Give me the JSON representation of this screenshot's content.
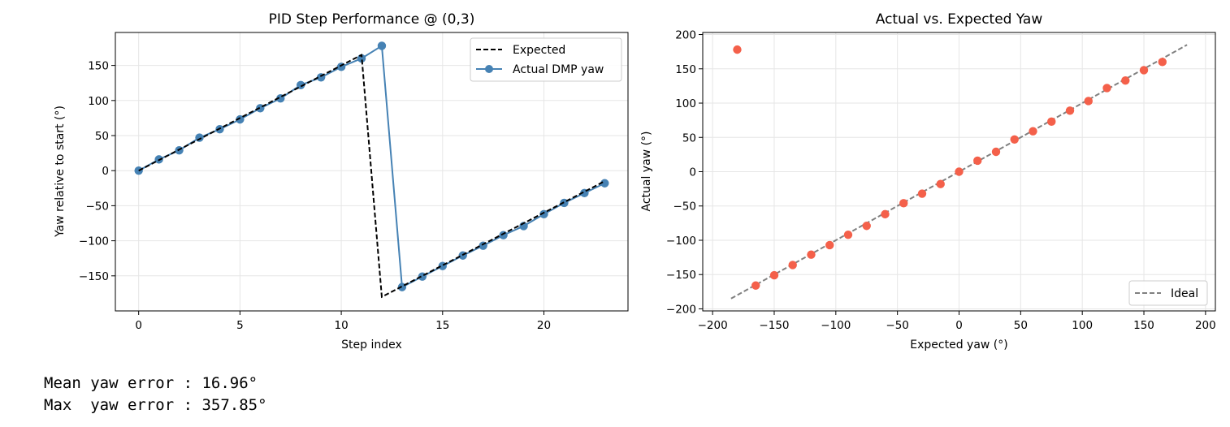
{
  "chart_data": [
    {
      "type": "line",
      "title": "PID Step Performance @ (0,3)",
      "xlabel": "Step index",
      "ylabel": "Yaw relative to start (°)",
      "xlim": [
        -1.15,
        24.15
      ],
      "ylim": [
        -200,
        197
      ],
      "xticks": [
        0,
        5,
        10,
        15,
        20
      ],
      "xtick_labels": [
        "0",
        "5",
        "10",
        "15",
        "20"
      ],
      "yticks": [
        -150,
        -100,
        -50,
        0,
        50,
        100,
        150
      ],
      "ytick_labels": [
        "−150",
        "−100",
        "−50",
        "0",
        "50",
        "100",
        "150"
      ],
      "grid": true,
      "legend_position": "top-right",
      "series": [
        {
          "name": "Expected",
          "style": "dashed",
          "color": "#000000",
          "x": [
            0,
            1,
            2,
            3,
            4,
            5,
            6,
            7,
            8,
            9,
            10,
            11,
            12,
            13,
            14,
            15,
            16,
            17,
            18,
            19,
            20,
            21,
            22,
            23
          ],
          "y": [
            0,
            15,
            30,
            45,
            60,
            75,
            90,
            105,
            120,
            135,
            150,
            165,
            -180,
            -165,
            -150,
            -135,
            -120,
            -105,
            -90,
            -75,
            -60,
            -45,
            -30,
            -15
          ]
        },
        {
          "name": "Actual DMP yaw",
          "style": "solid-marker",
          "color": "#4682b4",
          "x": [
            0,
            1,
            2,
            3,
            4,
            5,
            6,
            7,
            8,
            9,
            10,
            11,
            12,
            13,
            14,
            15,
            16,
            17,
            18,
            19,
            20,
            21,
            22,
            23
          ],
          "y": [
            0,
            16,
            29,
            47,
            59,
            73,
            89,
            103,
            122,
            133,
            148,
            160,
            178,
            -166,
            -151,
            -136,
            -121,
            -107,
            -92,
            -79,
            -62,
            -46,
            -32,
            -18
          ]
        }
      ]
    },
    {
      "type": "scatter",
      "title": "Actual vs. Expected Yaw",
      "xlabel": "Expected yaw (°)",
      "ylabel": "Actual yaw (°)",
      "xlim": [
        -208,
        208
      ],
      "ylim": [
        -203,
        203
      ],
      "xticks": [
        -200,
        -150,
        -100,
        -50,
        0,
        50,
        100,
        150,
        200
      ],
      "xtick_labels": [
        "−200",
        "−150",
        "−100",
        "−50",
        "0",
        "50",
        "100",
        "150",
        "200"
      ],
      "yticks": [
        -200,
        -150,
        -100,
        -50,
        0,
        50,
        100,
        150,
        200
      ],
      "ytick_labels": [
        "−200",
        "−150",
        "−100",
        "−50",
        "0",
        "50",
        "100",
        "150",
        "200"
      ],
      "grid": true,
      "legend_position": "bottom-right",
      "points_color": "#f4604a",
      "points": {
        "x": [
          -180,
          -165,
          -150,
          -135,
          -120,
          -105,
          -90,
          -75,
          -60,
          -45,
          -30,
          -15,
          0,
          15,
          30,
          45,
          60,
          75,
          90,
          105,
          120,
          135,
          150,
          165
        ],
        "y": [
          178,
          -166,
          -151,
          -136,
          -121,
          -107,
          -92,
          -79,
          -62,
          -46,
          -32,
          -18,
          0,
          16,
          29,
          47,
          59,
          73,
          89,
          103,
          122,
          133,
          148,
          160
        ]
      },
      "ideal_line": {
        "name": "Ideal",
        "color": "#808080",
        "style": "dashed",
        "x": [
          -185,
          185
        ],
        "y": [
          -185,
          185
        ]
      }
    }
  ],
  "stats": {
    "mean_line": "Mean yaw error : 16.96°",
    "max_line": "Max  yaw error : 357.85°"
  }
}
